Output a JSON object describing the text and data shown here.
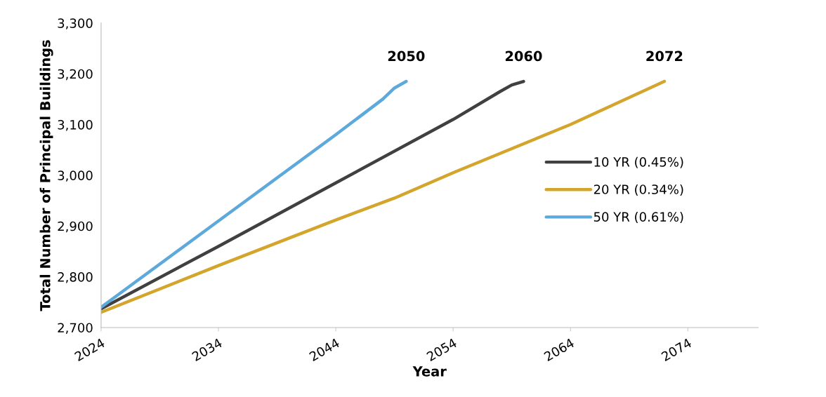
{
  "chart_data": {
    "type": "line",
    "xlabel": "Year",
    "ylabel": "Total Number of Principal Buildings",
    "series": [
      {
        "name": "10 YR (0.45%)",
        "color": "#404040",
        "x": [
          2024,
          2034,
          2044,
          2054,
          2058,
          2059,
          2060
        ],
        "values": [
          2737,
          2860,
          2985,
          3110,
          3165,
          3178,
          3185
        ]
      },
      {
        "name": "20 YR (0.34%)",
        "color": "#d4a52c",
        "x": [
          2024,
          2034,
          2044,
          2049,
          2054,
          2064,
          2072
        ],
        "values": [
          2730,
          2822,
          2912,
          2955,
          3005,
          3100,
          3185
        ]
      },
      {
        "name": "50 YR (0.61%)",
        "color": "#5ea9dc",
        "x": [
          2024,
          2034,
          2044,
          2048,
          2049,
          2050
        ],
        "values": [
          2740,
          2910,
          3080,
          3150,
          3172,
          3185
        ]
      }
    ],
    "annotations": [
      {
        "text": "2050",
        "x": 2050,
        "y": 3185
      },
      {
        "text": "2060",
        "x": 2060,
        "y": 3185
      },
      {
        "text": "2072",
        "x": 2072,
        "y": 3185
      }
    ],
    "xlim": [
      2024,
      2080
    ],
    "xticks": [
      2024,
      2034,
      2044,
      2054,
      2064,
      2074
    ],
    "ylim": [
      2700,
      3300
    ],
    "yticks": [
      {
        "value": 2700,
        "label": "2,700"
      },
      {
        "value": 2800,
        "label": "2,800"
      },
      {
        "value": 2900,
        "label": "2,900"
      },
      {
        "value": 3000,
        "label": "3,000"
      },
      {
        "value": 3100,
        "label": "3,100"
      },
      {
        "value": 3200,
        "label": "3,200"
      },
      {
        "value": 3300,
        "label": "3,300"
      }
    ],
    "grid": false,
    "legend": "right",
    "marker": "none",
    "line_style": "solid"
  }
}
